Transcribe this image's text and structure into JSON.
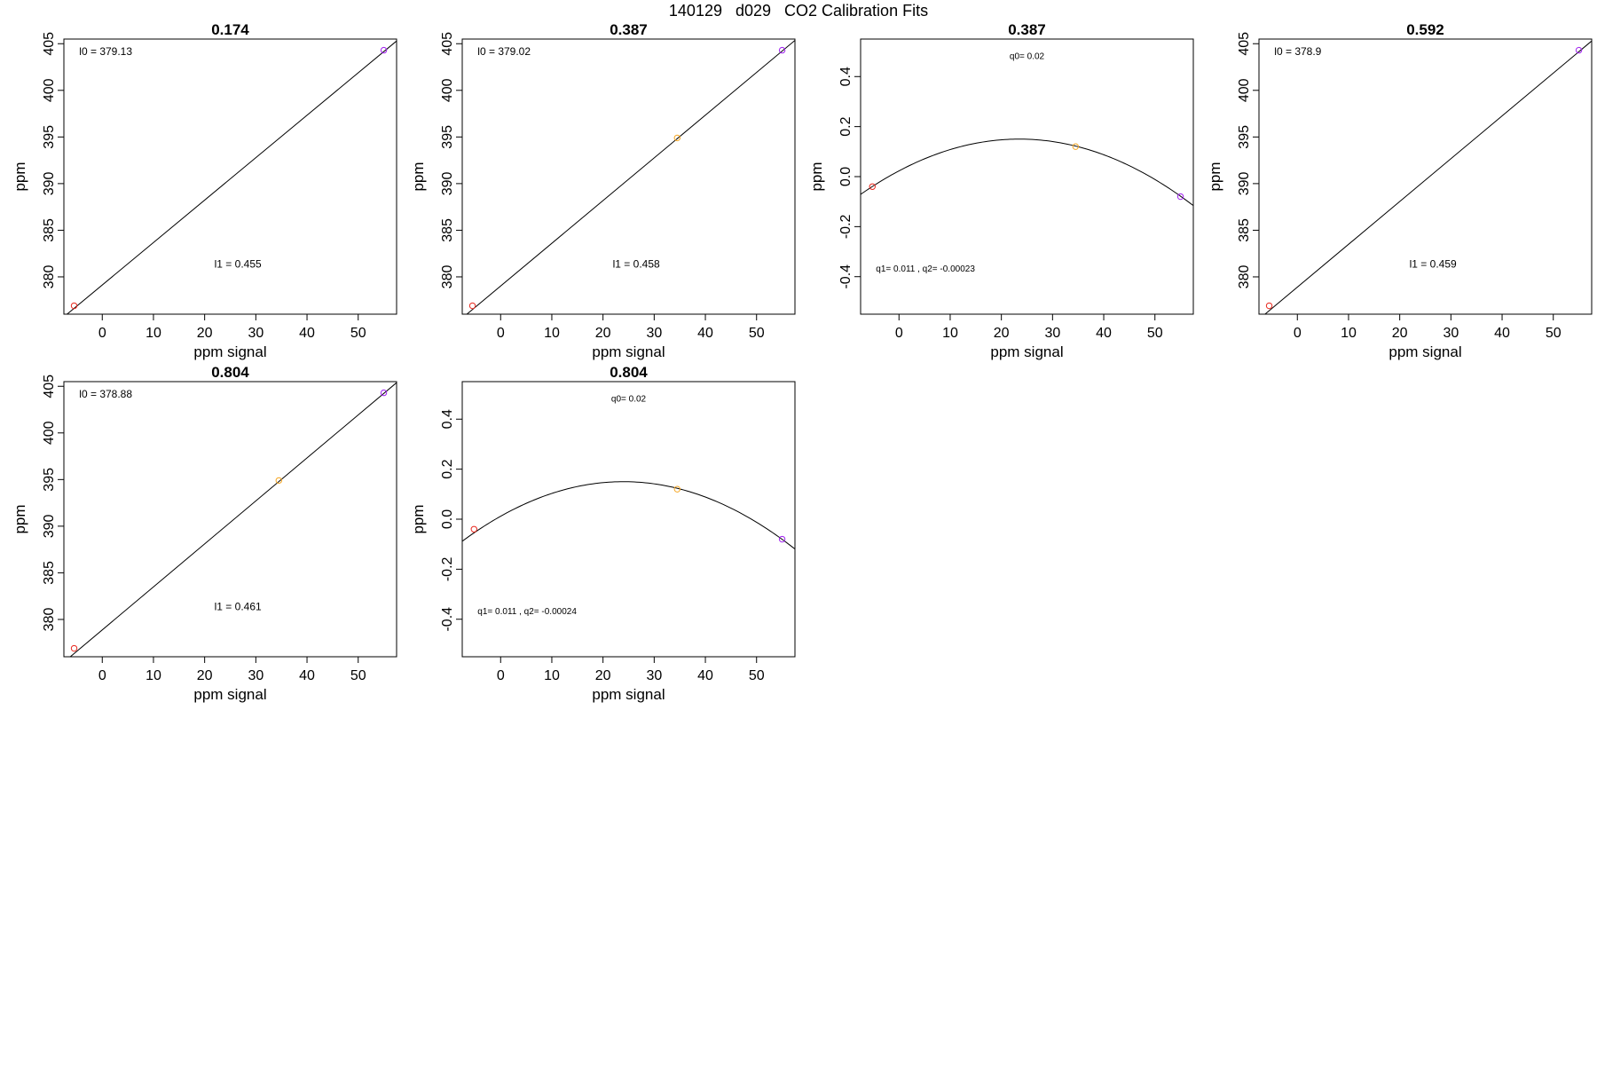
{
  "page": {
    "title": "140129   d029   CO2 Calibration Fits"
  },
  "colors": {
    "fit_line": "#000000",
    "point_low": "#e8281e",
    "point_mid": "#f5a623",
    "point_high": "#a020f0"
  },
  "chart_data": [
    {
      "type": "scatter",
      "fit": "linear",
      "title": "0.174",
      "xlabel": "ppm signal",
      "ylabel": "ppm",
      "xlim": [
        -7.5,
        57.5
      ],
      "ylim": [
        376,
        405.5
      ],
      "xticks": [
        0,
        10,
        20,
        30,
        40,
        50
      ],
      "yticks": [
        380,
        385,
        390,
        395,
        400,
        405
      ],
      "points": [
        {
          "x": -5.5,
          "y": 376.9,
          "color": "point_low"
        },
        {
          "x": 55.0,
          "y": 404.3,
          "color": "point_high"
        }
      ],
      "line": {
        "intercept": 379.13,
        "slope": 0.455
      },
      "annotations": [
        {
          "text": "l0 =  379.13",
          "x": -4.5,
          "y": 403.8,
          "anchor": "start"
        },
        {
          "text": "l1 =  0.455",
          "x": 26.5,
          "y": 381.0,
          "anchor": "middle"
        }
      ],
      "grid": false,
      "legend": "none"
    },
    {
      "type": "scatter",
      "fit": "linear",
      "title": "0.387",
      "xlabel": "ppm signal",
      "ylabel": "ppm",
      "xlim": [
        -7.5,
        57.5
      ],
      "ylim": [
        376,
        405.5
      ],
      "xticks": [
        0,
        10,
        20,
        30,
        40,
        50
      ],
      "yticks": [
        380,
        385,
        390,
        395,
        400,
        405
      ],
      "points": [
        {
          "x": -5.5,
          "y": 376.9,
          "color": "point_low"
        },
        {
          "x": 34.5,
          "y": 394.9,
          "color": "point_mid"
        },
        {
          "x": 55.0,
          "y": 404.3,
          "color": "point_high"
        }
      ],
      "line": {
        "intercept": 379.02,
        "slope": 0.458
      },
      "annotations": [
        {
          "text": "l0 =  379.02",
          "x": -4.5,
          "y": 403.8,
          "anchor": "start"
        },
        {
          "text": "l1 =  0.458",
          "x": 26.5,
          "y": 381.0,
          "anchor": "middle"
        }
      ],
      "grid": false,
      "legend": "none"
    },
    {
      "type": "scatter",
      "fit": "quadratic",
      "title": "0.387",
      "xlabel": "ppm signal",
      "ylabel": "ppm",
      "xlim": [
        -7.5,
        57.5
      ],
      "ylim": [
        -0.55,
        0.55
      ],
      "xticks": [
        0,
        10,
        20,
        30,
        40,
        50
      ],
      "yticks": [
        -0.4,
        -0.2,
        0.0,
        0.2,
        0.4
      ],
      "ytick_labels": [
        "-0.4",
        "-0.2",
        "0.0",
        "0.2",
        "0.4"
      ],
      "points": [
        {
          "x": -5.2,
          "y": -0.04,
          "color": "point_low"
        },
        {
          "x": 34.5,
          "y": 0.12,
          "color": "point_mid"
        },
        {
          "x": 55.0,
          "y": -0.08,
          "color": "point_high"
        }
      ],
      "curve": {
        "center": 23.5,
        "peak": 0.15,
        "curvature": -0.00023
      },
      "annotations": [
        {
          "text": "q0= 0.02",
          "x": 25.0,
          "y": 0.47,
          "anchor": "middle",
          "size": "small"
        },
        {
          "text": "q1= 0.011 , q2= -0.00023",
          "x": -4.5,
          "y": -0.38,
          "anchor": "start",
          "size": "small"
        }
      ],
      "grid": false,
      "legend": "none"
    },
    {
      "type": "scatter",
      "fit": "linear",
      "title": "0.592",
      "xlabel": "ppm signal",
      "ylabel": "ppm",
      "xlim": [
        -7.5,
        57.5
      ],
      "ylim": [
        376,
        405.5
      ],
      "xticks": [
        0,
        10,
        20,
        30,
        40,
        50
      ],
      "yticks": [
        380,
        385,
        390,
        395,
        400,
        405
      ],
      "points": [
        {
          "x": -5.5,
          "y": 376.9,
          "color": "point_low"
        },
        {
          "x": 55.0,
          "y": 404.3,
          "color": "point_high"
        }
      ],
      "line": {
        "intercept": 378.9,
        "slope": 0.459
      },
      "annotations": [
        {
          "text": "l0 =  378.9",
          "x": -4.5,
          "y": 403.8,
          "anchor": "start"
        },
        {
          "text": "l1 =  0.459",
          "x": 26.5,
          "y": 381.0,
          "anchor": "middle"
        }
      ],
      "grid": false,
      "legend": "none"
    },
    {
      "type": "scatter",
      "fit": "linear",
      "title": "0.804",
      "xlabel": "ppm signal",
      "ylabel": "ppm",
      "xlim": [
        -7.5,
        57.5
      ],
      "ylim": [
        376,
        405.5
      ],
      "xticks": [
        0,
        10,
        20,
        30,
        40,
        50
      ],
      "yticks": [
        380,
        385,
        390,
        395,
        400,
        405
      ],
      "points": [
        {
          "x": -5.5,
          "y": 376.9,
          "color": "point_low"
        },
        {
          "x": 34.5,
          "y": 394.9,
          "color": "point_mid"
        },
        {
          "x": 55.0,
          "y": 404.3,
          "color": "point_high"
        }
      ],
      "line": {
        "intercept": 378.88,
        "slope": 0.461
      },
      "annotations": [
        {
          "text": "l0 =  378.88",
          "x": -4.5,
          "y": 403.8,
          "anchor": "start"
        },
        {
          "text": "l1 =  0.461",
          "x": 26.5,
          "y": 381.0,
          "anchor": "middle"
        }
      ],
      "grid": false,
      "legend": "none"
    },
    {
      "type": "scatter",
      "fit": "quadratic",
      "title": "0.804",
      "xlabel": "ppm signal",
      "ylabel": "ppm",
      "xlim": [
        -7.5,
        57.5
      ],
      "ylim": [
        -0.55,
        0.55
      ],
      "xticks": [
        0,
        10,
        20,
        30,
        40,
        50
      ],
      "yticks": [
        -0.4,
        -0.2,
        0.0,
        0.2,
        0.4
      ],
      "ytick_labels": [
        "-0.4",
        "-0.2",
        "0.0",
        "0.2",
        "0.4"
      ],
      "points": [
        {
          "x": -5.2,
          "y": -0.04,
          "color": "point_low"
        },
        {
          "x": 34.5,
          "y": 0.12,
          "color": "point_mid"
        },
        {
          "x": 55.0,
          "y": -0.08,
          "color": "point_high"
        }
      ],
      "curve": {
        "center": 24.0,
        "peak": 0.15,
        "curvature": -0.00024
      },
      "annotations": [
        {
          "text": "q0= 0.02",
          "x": 25.0,
          "y": 0.47,
          "anchor": "middle",
          "size": "small"
        },
        {
          "text": "q1= 0.011 , q2= -0.00024",
          "x": -4.5,
          "y": -0.38,
          "anchor": "start",
          "size": "small"
        }
      ],
      "grid": false,
      "legend": "none"
    }
  ]
}
